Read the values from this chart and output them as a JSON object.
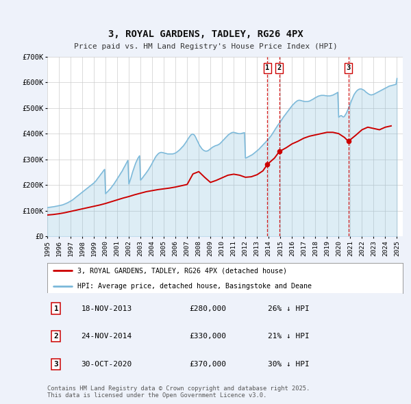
{
  "title": "3, ROYAL GARDENS, TADLEY, RG26 4PX",
  "subtitle": "Price paid vs. HM Land Registry's House Price Index (HPI)",
  "hpi_color": "#7ab8d9",
  "price_color": "#cc0000",
  "vline_color": "#cc0000",
  "background_color": "#eef2fa",
  "plot_bg_color": "#ffffff",
  "ylim": [
    0,
    700000
  ],
  "yticks": [
    0,
    100000,
    200000,
    300000,
    400000,
    500000,
    600000,
    700000
  ],
  "ytick_labels": [
    "£0",
    "£100K",
    "£200K",
    "£300K",
    "£400K",
    "£500K",
    "£600K",
    "£700K"
  ],
  "xlim_start": 1995.0,
  "xlim_end": 2025.5,
  "xticks": [
    1995,
    1996,
    1997,
    1998,
    1999,
    2000,
    2001,
    2002,
    2003,
    2004,
    2005,
    2006,
    2007,
    2008,
    2009,
    2010,
    2011,
    2012,
    2013,
    2014,
    2015,
    2016,
    2017,
    2018,
    2019,
    2020,
    2021,
    2022,
    2023,
    2024,
    2025
  ],
  "legend_label_red": "3, ROYAL GARDENS, TADLEY, RG26 4PX (detached house)",
  "legend_label_blue": "HPI: Average price, detached house, Basingstoke and Deane",
  "sale_events": [
    {
      "label": "1",
      "date_num": 2013.88,
      "price": 280000,
      "date_str": "18-NOV-2013",
      "price_str": "£280,000",
      "pct_str": "26% ↓ HPI"
    },
    {
      "label": "2",
      "date_num": 2014.9,
      "price": 330000,
      "date_str": "24-NOV-2014",
      "price_str": "£330,000",
      "pct_str": "21% ↓ HPI"
    },
    {
      "label": "3",
      "date_num": 2020.83,
      "price": 370000,
      "date_str": "30-OCT-2020",
      "price_str": "£370,000",
      "pct_str": "30% ↓ HPI"
    }
  ],
  "footer_text": "Contains HM Land Registry data © Crown copyright and database right 2025.\nThis data is licensed under the Open Government Licence v3.0.",
  "hpi_data_x": [
    1995.0,
    1995.08,
    1995.17,
    1995.25,
    1995.33,
    1995.42,
    1995.5,
    1995.58,
    1995.67,
    1995.75,
    1995.83,
    1995.92,
    1996.0,
    1996.08,
    1996.17,
    1996.25,
    1996.33,
    1996.42,
    1996.5,
    1996.58,
    1996.67,
    1996.75,
    1996.83,
    1996.92,
    1997.0,
    1997.08,
    1997.17,
    1997.25,
    1997.33,
    1997.42,
    1997.5,
    1997.58,
    1997.67,
    1997.75,
    1997.83,
    1997.92,
    1998.0,
    1998.08,
    1998.17,
    1998.25,
    1998.33,
    1998.42,
    1998.5,
    1998.58,
    1998.67,
    1998.75,
    1998.83,
    1998.92,
    1999.0,
    1999.08,
    1999.17,
    1999.25,
    1999.33,
    1999.42,
    1999.5,
    1999.58,
    1999.67,
    1999.75,
    1999.83,
    1999.92,
    2000.0,
    2000.08,
    2000.17,
    2000.25,
    2000.33,
    2000.42,
    2000.5,
    2000.58,
    2000.67,
    2000.75,
    2000.83,
    2000.92,
    2001.0,
    2001.08,
    2001.17,
    2001.25,
    2001.33,
    2001.42,
    2001.5,
    2001.58,
    2001.67,
    2001.75,
    2001.83,
    2001.92,
    2002.0,
    2002.08,
    2002.17,
    2002.25,
    2002.33,
    2002.42,
    2002.5,
    2002.58,
    2002.67,
    2002.75,
    2002.83,
    2002.92,
    2003.0,
    2003.08,
    2003.17,
    2003.25,
    2003.33,
    2003.42,
    2003.5,
    2003.58,
    2003.67,
    2003.75,
    2003.83,
    2003.92,
    2004.0,
    2004.08,
    2004.17,
    2004.25,
    2004.33,
    2004.42,
    2004.5,
    2004.58,
    2004.67,
    2004.75,
    2004.83,
    2004.92,
    2005.0,
    2005.08,
    2005.17,
    2005.25,
    2005.33,
    2005.42,
    2005.5,
    2005.58,
    2005.67,
    2005.75,
    2005.83,
    2005.92,
    2006.0,
    2006.08,
    2006.17,
    2006.25,
    2006.33,
    2006.42,
    2006.5,
    2006.58,
    2006.67,
    2006.75,
    2006.83,
    2006.92,
    2007.0,
    2007.08,
    2007.17,
    2007.25,
    2007.33,
    2007.42,
    2007.5,
    2007.58,
    2007.67,
    2007.75,
    2007.83,
    2007.92,
    2008.0,
    2008.08,
    2008.17,
    2008.25,
    2008.33,
    2008.42,
    2008.5,
    2008.58,
    2008.67,
    2008.75,
    2008.83,
    2008.92,
    2009.0,
    2009.08,
    2009.17,
    2009.25,
    2009.33,
    2009.42,
    2009.5,
    2009.58,
    2009.67,
    2009.75,
    2009.83,
    2009.92,
    2010.0,
    2010.08,
    2010.17,
    2010.25,
    2010.33,
    2010.42,
    2010.5,
    2010.58,
    2010.67,
    2010.75,
    2010.83,
    2010.92,
    2011.0,
    2011.08,
    2011.17,
    2011.25,
    2011.33,
    2011.42,
    2011.5,
    2011.58,
    2011.67,
    2011.75,
    2011.83,
    2011.92,
    2012.0,
    2012.08,
    2012.17,
    2012.25,
    2012.33,
    2012.42,
    2012.5,
    2012.58,
    2012.67,
    2012.75,
    2012.83,
    2012.92,
    2013.0,
    2013.08,
    2013.17,
    2013.25,
    2013.33,
    2013.42,
    2013.5,
    2013.58,
    2013.67,
    2013.75,
    2013.83,
    2013.92,
    2014.0,
    2014.08,
    2014.17,
    2014.25,
    2014.33,
    2014.42,
    2014.5,
    2014.58,
    2014.67,
    2014.75,
    2014.83,
    2014.92,
    2015.0,
    2015.08,
    2015.17,
    2015.25,
    2015.33,
    2015.42,
    2015.5,
    2015.58,
    2015.67,
    2015.75,
    2015.83,
    2015.92,
    2016.0,
    2016.08,
    2016.17,
    2016.25,
    2016.33,
    2016.42,
    2016.5,
    2016.58,
    2016.67,
    2016.75,
    2016.83,
    2016.92,
    2017.0,
    2017.08,
    2017.17,
    2017.25,
    2017.33,
    2017.42,
    2017.5,
    2017.58,
    2017.67,
    2017.75,
    2017.83,
    2017.92,
    2018.0,
    2018.08,
    2018.17,
    2018.25,
    2018.33,
    2018.42,
    2018.5,
    2018.58,
    2018.67,
    2018.75,
    2018.83,
    2018.92,
    2019.0,
    2019.08,
    2019.17,
    2019.25,
    2019.33,
    2019.42,
    2019.5,
    2019.58,
    2019.67,
    2019.75,
    2019.83,
    2019.92,
    2020.0,
    2020.08,
    2020.17,
    2020.25,
    2020.33,
    2020.42,
    2020.5,
    2020.58,
    2020.67,
    2020.75,
    2020.83,
    2020.92,
    2021.0,
    2021.08,
    2021.17,
    2021.25,
    2021.33,
    2021.42,
    2021.5,
    2021.58,
    2021.67,
    2021.75,
    2021.83,
    2021.92,
    2022.0,
    2022.08,
    2022.17,
    2022.25,
    2022.33,
    2022.42,
    2022.5,
    2022.58,
    2022.67,
    2022.75,
    2022.83,
    2022.92,
    2023.0,
    2023.08,
    2023.17,
    2023.25,
    2023.33,
    2023.42,
    2023.5,
    2023.58,
    2023.67,
    2023.75,
    2023.83,
    2023.92,
    2024.0,
    2024.08,
    2024.17,
    2024.25,
    2024.33,
    2024.42,
    2024.5,
    2024.58,
    2024.67,
    2024.75,
    2024.83,
    2024.92,
    2025.0
  ],
  "hpi_data_y": [
    112000,
    112500,
    113000,
    113500,
    114000,
    114500,
    115000,
    115800,
    116500,
    117200,
    118000,
    118800,
    119500,
    120200,
    121000,
    122000,
    123000,
    124500,
    126000,
    127500,
    129000,
    131000,
    133000,
    135000,
    137000,
    139500,
    142000,
    145000,
    148000,
    151000,
    154000,
    157000,
    160000,
    163000,
    166000,
    169000,
    172000,
    175000,
    178000,
    181000,
    184000,
    187000,
    190000,
    193000,
    196000,
    199000,
    202000,
    205000,
    208000,
    212000,
    216000,
    221000,
    226000,
    231000,
    236000,
    241000,
    246000,
    251000,
    256000,
    261000,
    166000,
    170000,
    174000,
    178000,
    182000,
    186000,
    191000,
    196000,
    201000,
    206000,
    212000,
    218000,
    224000,
    230000,
    236000,
    242000,
    248000,
    254000,
    261000,
    268000,
    275000,
    282000,
    289000,
    296000,
    204000,
    215000,
    227000,
    240000,
    252000,
    264000,
    275000,
    285000,
    294000,
    302000,
    308000,
    314000,
    219000,
    223000,
    228000,
    233000,
    238000,
    243000,
    248000,
    253000,
    259000,
    265000,
    271000,
    278000,
    285000,
    292000,
    299000,
    306000,
    312000,
    317000,
    321000,
    324000,
    326000,
    327000,
    327000,
    326000,
    325000,
    324000,
    323000,
    322000,
    321000,
    321000,
    321000,
    321000,
    321000,
    321000,
    322000,
    323000,
    325000,
    327000,
    330000,
    333000,
    336000,
    340000,
    344000,
    348000,
    352000,
    357000,
    362000,
    368000,
    374000,
    380000,
    386000,
    391000,
    395000,
    398000,
    398000,
    396000,
    391000,
    384000,
    376000,
    368000,
    360000,
    353000,
    347000,
    342000,
    338000,
    335000,
    333000,
    332000,
    332000,
    333000,
    335000,
    338000,
    341000,
    344000,
    347000,
    349000,
    351000,
    353000,
    354000,
    355000,
    357000,
    359000,
    362000,
    366000,
    370000,
    374000,
    378000,
    382000,
    386000,
    390000,
    394000,
    397000,
    400000,
    402000,
    404000,
    405000,
    405000,
    404000,
    403000,
    402000,
    401000,
    400000,
    400000,
    400000,
    401000,
    402000,
    403000,
    404000,
    305000,
    306000,
    308000,
    310000,
    312000,
    314000,
    316000,
    318000,
    321000,
    324000,
    327000,
    330000,
    333000,
    336000,
    340000,
    344000,
    348000,
    352000,
    356000,
    360000,
    364000,
    368000,
    372000,
    376000,
    380000,
    385000,
    390000,
    395000,
    401000,
    407000,
    413000,
    419000,
    425000,
    431000,
    436000,
    441000,
    447000,
    452000,
    458000,
    464000,
    469000,
    474000,
    479000,
    484000,
    489000,
    494000,
    499000,
    504000,
    509000,
    513000,
    517000,
    521000,
    524000,
    527000,
    529000,
    530000,
    530000,
    529000,
    528000,
    527000,
    526000,
    525000,
    525000,
    525000,
    525000,
    526000,
    527000,
    529000,
    531000,
    533000,
    535000,
    538000,
    540000,
    542000,
    544000,
    546000,
    547000,
    548000,
    549000,
    549000,
    549000,
    549000,
    548000,
    548000,
    547000,
    547000,
    547000,
    547000,
    548000,
    549000,
    550000,
    552000,
    554000,
    556000,
    558000,
    561000,
    464000,
    467000,
    470000,
    470000,
    466000,
    465000,
    468000,
    474000,
    481000,
    489000,
    498000,
    507000,
    517000,
    527000,
    536000,
    545000,
    553000,
    559000,
    564000,
    568000,
    571000,
    573000,
    574000,
    574000,
    573000,
    571000,
    569000,
    566000,
    562000,
    559000,
    556000,
    554000,
    552000,
    551000,
    551000,
    552000,
    553000,
    555000,
    557000,
    559000,
    561000,
    563000,
    565000,
    567000,
    569000,
    571000,
    573000,
    575000,
    577000,
    579000,
    581000,
    583000,
    585000,
    586000,
    587000,
    588000,
    589000,
    590000,
    591000,
    592000,
    615000
  ],
  "price_data_x": [
    1995.0,
    1995.5,
    1996.0,
    1996.5,
    1997.0,
    1997.5,
    1998.0,
    1998.5,
    1999.0,
    1999.5,
    2000.0,
    2000.5,
    2001.0,
    2001.5,
    2002.0,
    2002.5,
    2003.0,
    2003.5,
    2004.0,
    2004.5,
    2005.0,
    2005.5,
    2006.0,
    2006.5,
    2007.0,
    2007.5,
    2008.0,
    2008.5,
    2009.0,
    2009.5,
    2010.0,
    2010.5,
    2011.0,
    2011.5,
    2012.0,
    2012.5,
    2013.0,
    2013.5,
    2013.88,
    2014.5,
    2014.9,
    2015.5,
    2016.0,
    2016.5,
    2017.0,
    2017.5,
    2018.0,
    2018.5,
    2019.0,
    2019.5,
    2020.0,
    2020.5,
    2020.83,
    2021.5,
    2022.0,
    2022.5,
    2023.0,
    2023.5,
    2024.0,
    2024.5
  ],
  "price_data_y": [
    83000,
    85000,
    88000,
    92000,
    97000,
    102000,
    107000,
    112000,
    117000,
    122000,
    128000,
    135000,
    142000,
    149000,
    155000,
    162000,
    168000,
    174000,
    178000,
    182000,
    185000,
    188000,
    192000,
    197000,
    202000,
    243000,
    252000,
    230000,
    210000,
    218000,
    228000,
    238000,
    242000,
    238000,
    230000,
    232000,
    240000,
    255000,
    280000,
    305000,
    330000,
    345000,
    360000,
    370000,
    382000,
    390000,
    395000,
    400000,
    405000,
    405000,
    400000,
    385000,
    370000,
    395000,
    415000,
    425000,
    420000,
    415000,
    425000,
    430000
  ]
}
